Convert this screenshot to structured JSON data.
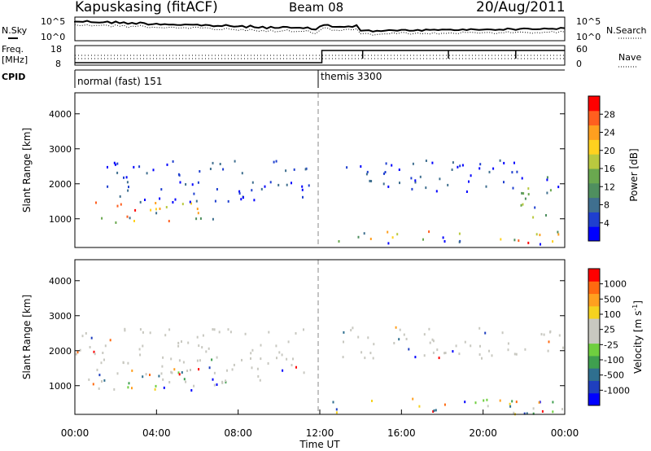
{
  "header": {
    "station": "Kapuskasing (fitACF)",
    "beam": "Beam 08",
    "date": "20/Aug/2011"
  },
  "strip_panels": {
    "nsky_label": "N.Sky",
    "nsearch_label": "N.Search",
    "noise_ticks": [
      "10^5",
      "10^0"
    ],
    "noise_ticks_right": [
      "10^5",
      "10^0"
    ],
    "freq_label_1": "Freq.",
    "freq_label_2": "[MHz]",
    "freq_ticks": [
      "18",
      "8"
    ],
    "nave_label": "Nave",
    "nave_ticks": [
      "60",
      "0"
    ],
    "cpid_label": "CPID",
    "modes": [
      {
        "label": "normal (fast) 151",
        "start_hour": 0
      },
      {
        "label": "themis 3300",
        "start_hour": 12.0
      }
    ]
  },
  "chart_data": [
    {
      "type": "heatmap",
      "name": "power-panel",
      "ylabel": "Slant Range [km]",
      "yticks": [
        "4000",
        "3000",
        "2000",
        "1000"
      ],
      "ylim": [
        180,
        4600
      ],
      "xlim": [
        0,
        24
      ],
      "colorbar": {
        "label": "Power [dB]",
        "ticks": [
          "28",
          "24",
          "20",
          "16",
          "12",
          "8",
          "4"
        ],
        "range": [
          0,
          30
        ],
        "colors": [
          "#0000ff",
          "#1f3fcf",
          "#3f6f8f",
          "#4f8f5f",
          "#6aa84f",
          "#b9c93f",
          "#ffd21f",
          "#ff9f1f",
          "#ff5f1f",
          "#ff0000"
        ]
      },
      "echo_regions": [
        {
          "t0": 0.7,
          "t1": 7.5,
          "r0": 900,
          "r1": 1500,
          "level": "high"
        },
        {
          "t0": 1.5,
          "t1": 11.5,
          "r0": 1500,
          "r1": 2700,
          "level": "low"
        },
        {
          "t0": 12.6,
          "t1": 21.8,
          "r0": 1800,
          "r1": 2700,
          "level": "low"
        },
        {
          "t0": 12.6,
          "t1": 24.0,
          "r0": 300,
          "r1": 700,
          "level": "mixed"
        },
        {
          "t0": 21.8,
          "t1": 24.0,
          "r0": 1000,
          "r1": 2300,
          "level": "mid"
        }
      ]
    },
    {
      "type": "heatmap",
      "name": "velocity-panel",
      "ylabel": "Slant Range [km]",
      "yticks": [
        "4000",
        "3000",
        "2000",
        "1000"
      ],
      "ylim": [
        180,
        4600
      ],
      "xlim": [
        0,
        24
      ],
      "xlabel": "Time UT",
      "xticks": [
        "00:00",
        "04:00",
        "08:00",
        "12:00",
        "16:00",
        "20:00",
        "00:00"
      ],
      "colorbar": {
        "label": "Velocity [m s",
        "label_sup": "-1",
        "label_end": "]",
        "ticks": [
          "1000",
          "500",
          "100",
          "25",
          "-25",
          "-100",
          "-500",
          "-1000"
        ],
        "colors": [
          "#0000ff",
          "#1f3fbf",
          "#2f6f8f",
          "#3f9f4f",
          "#6fcf3f",
          "#c8c8c0",
          "#c8c8c0",
          "#f5d21f",
          "#ffa01f",
          "#ff6a10",
          "#ff0000"
        ]
      },
      "echo_regions": [
        {
          "t0": 0.7,
          "t1": 7.5,
          "r0": 900,
          "r1": 1500,
          "level": "mixed"
        },
        {
          "t0": 0.0,
          "t1": 11.5,
          "r0": 1100,
          "r1": 2700,
          "level": "ground"
        },
        {
          "t0": 12.6,
          "t1": 24.0,
          "r0": 1800,
          "r1": 2700,
          "level": "ground"
        },
        {
          "t0": 12.6,
          "t1": 24.0,
          "r0": 200,
          "r1": 700,
          "level": "mixed"
        }
      ]
    }
  ]
}
